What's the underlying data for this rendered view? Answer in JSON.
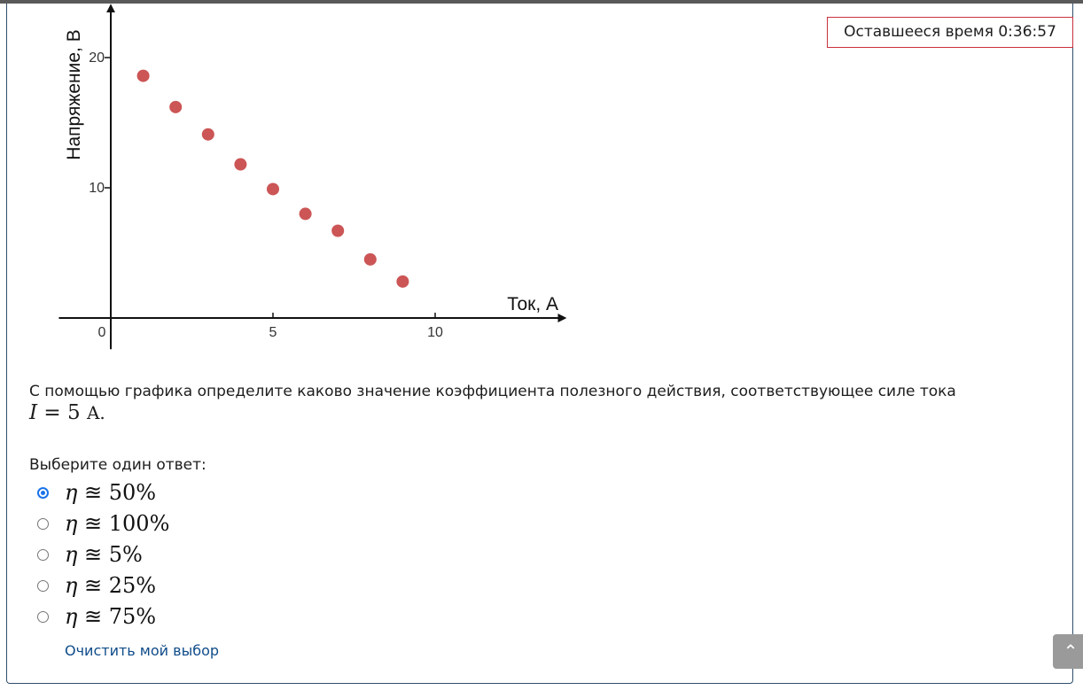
{
  "timer": {
    "label": "Оставшееся время 0:36:57"
  },
  "chart_data": {
    "type": "scatter",
    "xlabel": "Ток, А",
    "ylabel": "Напряжение, В",
    "xticks": [
      "0",
      "5",
      "10"
    ],
    "yticks": [
      "10",
      "20"
    ],
    "xlim": [
      -1.6,
      14
    ],
    "ylim": [
      -2.4,
      24
    ],
    "points": [
      {
        "x": 1,
        "y": 18.6
      },
      {
        "x": 2,
        "y": 16.2
      },
      {
        "x": 3,
        "y": 14.1
      },
      {
        "x": 4,
        "y": 11.8
      },
      {
        "x": 5,
        "y": 9.9
      },
      {
        "x": 6,
        "y": 8.0
      },
      {
        "x": 7,
        "y": 6.7
      },
      {
        "x": 8,
        "y": 4.5
      },
      {
        "x": 9,
        "y": 2.8
      }
    ],
    "point_color": "#cc5555"
  },
  "question": {
    "text": "С помощью графика определите каково значение коэффициента полезного действия, соответствующее силе тока",
    "formula_var": "I",
    "formula_rest": " = 5 ",
    "formula_unit": "A."
  },
  "answers": {
    "prompt": "Выберите один ответ:",
    "options": [
      {
        "eta": "η",
        "text": " ≊ 50%",
        "checked": true
      },
      {
        "eta": "η",
        "text": " ≊ 100%",
        "checked": false
      },
      {
        "eta": "η",
        "text": " ≊ 5%",
        "checked": false
      },
      {
        "eta": "η",
        "text": " ≊ 25%",
        "checked": false
      },
      {
        "eta": "η",
        "text": " ≊ 75%",
        "checked": false
      }
    ],
    "clear_label": "Очистить мой выбор"
  },
  "scroll_top": {
    "icon": "chevron-up-icon",
    "glyph": "⌃"
  },
  "colors": {
    "accent": "#1a73e8",
    "timer_border": "#c8313d",
    "link": "#0f4c8a"
  }
}
